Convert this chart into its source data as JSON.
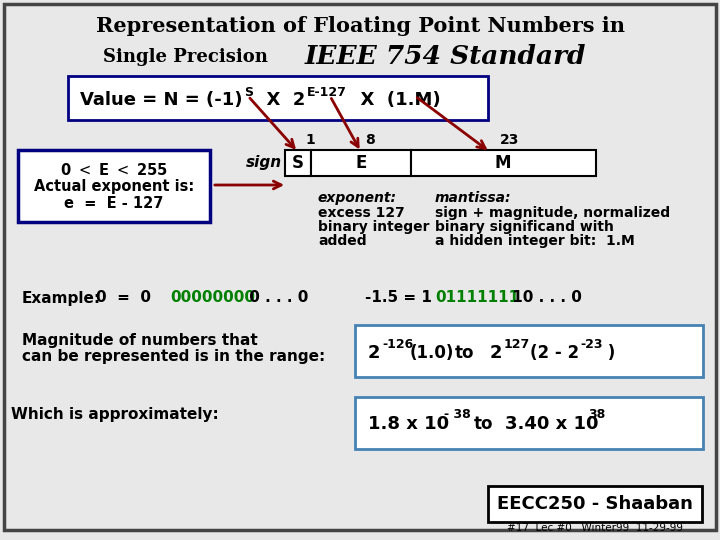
{
  "bg_color": "#e8e8e8",
  "title1": "Representation of Floating Point Numbers in",
  "title2_plain": "Single Precision",
  "title2_italic": "IEEE 754 Standard",
  "footer": "EECC250 - Shaaban",
  "footer_sub": "#17  Lec #0   Winter99  11-29-99"
}
